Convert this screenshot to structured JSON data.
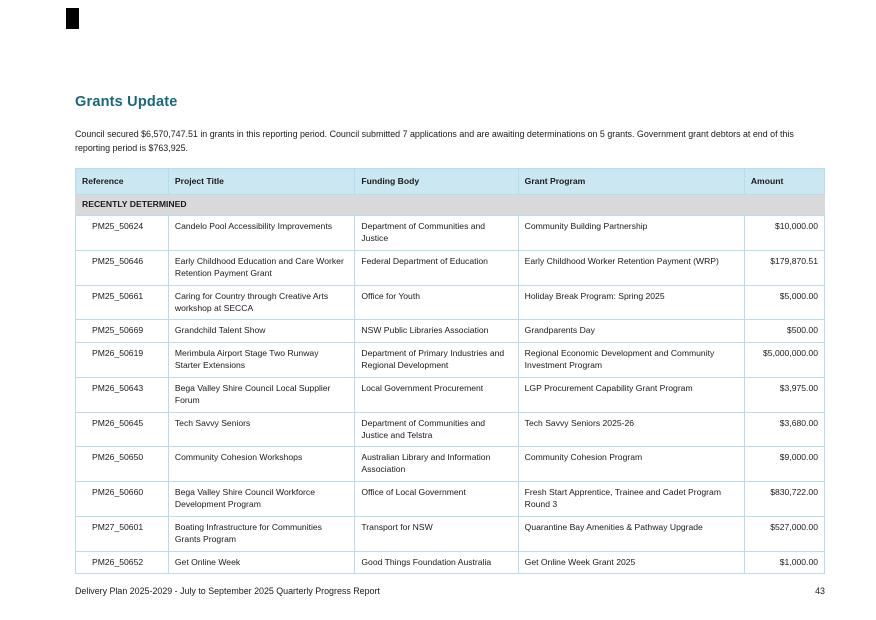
{
  "page": {
    "title": "Grants Update",
    "intro": "Council secured $6,570,747.51 in grants in this reporting period. Council submitted 7 applications and are awaiting determinations on 5 grants. Government grant debtors at end of this reporting period is $763,925.",
    "footer": {
      "left": "Delivery Plan 2025-2029 - July to September 2025 Quarterly Progress Report",
      "page_number": "43"
    }
  },
  "colors": {
    "accent_teal": "#17687F",
    "table_header_bg": "#cbe8f2",
    "section_bg": "#d9d9d9",
    "table_border": "#b7dcea"
  },
  "table": {
    "columns": [
      "Reference",
      "Project Title",
      "Funding Body",
      "Grant Program",
      "Amount"
    ],
    "section_label": "RECENTLY DETERMINED",
    "rows": [
      {
        "reference": "PM25_50624",
        "project_title": "Candelo Pool Accessibility Improvements",
        "funding_body": "Department of Communities and Justice",
        "grant_program": "Community Building Partnership",
        "amount": "$10,000.00"
      },
      {
        "reference": "PM25_50646",
        "project_title": "Early Childhood Education and Care Worker Retention Payment Grant",
        "funding_body": "Federal Department of Education",
        "grant_program": "Early Childhood Worker Retention Payment (WRP)",
        "amount": "$179,870.51"
      },
      {
        "reference": "PM25_50661",
        "project_title": "Caring for Country through Creative Arts workshop at SECCA",
        "funding_body": "Office for Youth",
        "grant_program": "Holiday Break Program: Spring 2025",
        "amount": "$5,000.00"
      },
      {
        "reference": "PM25_50669",
        "project_title": "Grandchild Talent Show",
        "funding_body": "NSW Public Libraries Association",
        "grant_program": "Grandparents Day",
        "amount": "$500.00"
      },
      {
        "reference": "PM26_50619",
        "project_title": "Merimbula Airport Stage Two Runway Starter Extensions",
        "funding_body": "Department of Primary Industries and Regional Development",
        "grant_program": "Regional Economic Development and Community Investment Program",
        "amount": "$5,000,000.00"
      },
      {
        "reference": "PM26_50643",
        "project_title": "Bega Valley Shire Council Local Supplier Forum",
        "funding_body": "Local Government Procurement",
        "grant_program": "LGP Procurement Capability Grant Program",
        "amount": "$3,975.00"
      },
      {
        "reference": "PM26_50645",
        "project_title": "Tech Savvy Seniors",
        "funding_body": "Department of Communities and Justice and Telstra",
        "grant_program": "Tech Savvy Seniors 2025-26",
        "amount": "$3,680.00"
      },
      {
        "reference": "PM26_50650",
        "project_title": "Community Cohesion Workshops",
        "funding_body": "Australian Library and Information Association",
        "grant_program": "Community Cohesion Program",
        "amount": "$9,000.00"
      },
      {
        "reference": "PM26_50660",
        "project_title": "Bega Valley Shire Council Workforce Development Program",
        "funding_body": "Office of Local Government",
        "grant_program": "Fresh Start Apprentice, Trainee and Cadet Program Round 3",
        "amount": "$830,722.00"
      },
      {
        "reference": "PM27_50601",
        "project_title": "Boating Infrastructure for Communities Grants Program",
        "funding_body": "Transport for NSW",
        "grant_program": "Quarantine Bay Amenities & Pathway Upgrade",
        "amount": "$527,000.00"
      },
      {
        "reference": "PM26_50652",
        "project_title": "Get Online Week",
        "funding_body": "Good Things Foundation Australia",
        "grant_program": "Get Online Week Grant 2025",
        "amount": "$1,000.00"
      }
    ]
  }
}
